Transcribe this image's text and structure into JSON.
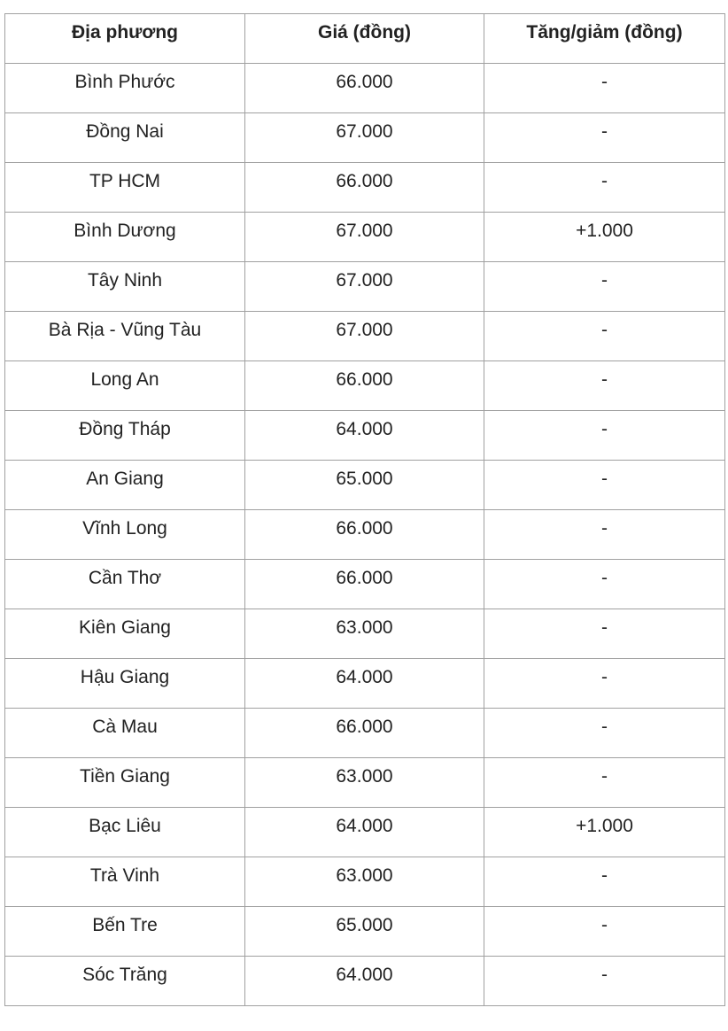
{
  "table": {
    "headers": [
      "Địa phương",
      "Giá (đồng)",
      "Tăng/giảm (đồng)"
    ],
    "rows": [
      [
        "Bình Phước",
        "66.000",
        "-"
      ],
      [
        "Đồng Nai",
        "67.000",
        "-"
      ],
      [
        "TP HCM",
        "66.000",
        "-"
      ],
      [
        "Bình Dương",
        "67.000",
        "+1.000"
      ],
      [
        "Tây Ninh",
        "67.000",
        "-"
      ],
      [
        "Bà Rịa - Vũng Tàu",
        "67.000",
        "-"
      ],
      [
        "Long An",
        "66.000",
        "-"
      ],
      [
        "Đồng Tháp",
        "64.000",
        "-"
      ],
      [
        "An Giang",
        "65.000",
        "-"
      ],
      [
        "Vĩnh Long",
        "66.000",
        "-"
      ],
      [
        "Cần Thơ",
        "66.000",
        "-"
      ],
      [
        "Kiên Giang",
        "63.000",
        "-"
      ],
      [
        "Hậu Giang",
        "64.000",
        "-"
      ],
      [
        "Cà Mau",
        "66.000",
        "-"
      ],
      [
        "Tiền Giang",
        "63.000",
        "-"
      ],
      [
        "Bạc Liêu",
        "64.000",
        "+1.000"
      ],
      [
        "Trà Vinh",
        "63.000",
        "-"
      ],
      [
        "Bến Tre",
        "65.000",
        "-"
      ],
      [
        "Sóc Trăng",
        "64.000",
        "-"
      ]
    ]
  }
}
